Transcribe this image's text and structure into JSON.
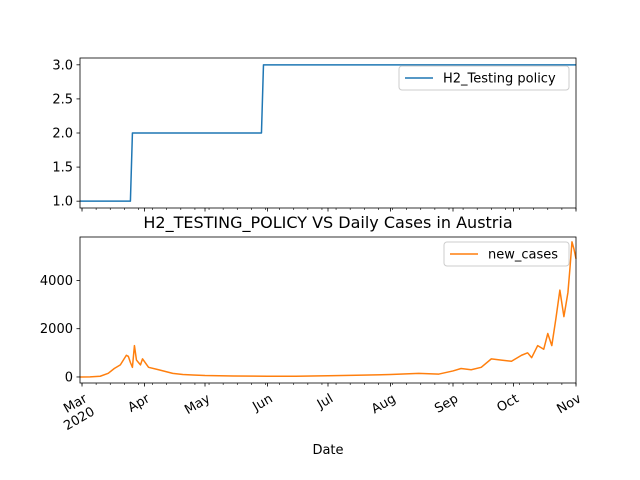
{
  "chart_data": [
    {
      "type": "line",
      "title": "",
      "xlabel": "",
      "ylabel": "",
      "ylim": [
        0.9,
        3.1
      ],
      "yticks": [
        1.0,
        1.5,
        2.0,
        2.5,
        3.0
      ],
      "ytick_labels": [
        "1.0",
        "1.5",
        "2.0",
        "2.5",
        "3.0"
      ],
      "legend_position": "top-right",
      "series": [
        {
          "name": "H2_Testing policy",
          "color": "#1f77b4",
          "x": [
            "2020-02-29",
            "2020-03-25",
            "2020-03-26",
            "2020-05-29",
            "2020-05-30",
            "2020-11-01"
          ],
          "values": [
            1,
            1,
            2,
            2,
            3,
            3
          ]
        }
      ]
    },
    {
      "type": "line",
      "title": "H2_TESTING_POLICY VS Daily Cases in Austria",
      "xlabel": "Date",
      "ylabel": "",
      "ylim": [
        -250,
        5800
      ],
      "yticks": [
        0,
        2000,
        4000
      ],
      "ytick_labels": [
        "0",
        "2000",
        "4000"
      ],
      "xlim": [
        "2020-02-29",
        "2020-11-01"
      ],
      "xticks": [
        "2020-03-01",
        "2020-04-01",
        "2020-05-01",
        "2020-06-01",
        "2020-07-01",
        "2020-08-01",
        "2020-09-01",
        "2020-10-01",
        "2020-11-01"
      ],
      "xtick_labels": [
        "Mar\n2020",
        "Apr",
        "May",
        "Jun",
        "Jul",
        "Aug",
        "Sep",
        "Oct",
        "Nov"
      ],
      "legend_position": "top-right",
      "series": [
        {
          "name": "new_cases",
          "color": "#ff7f0e",
          "x": [
            "2020-02-29",
            "2020-03-05",
            "2020-03-10",
            "2020-03-14",
            "2020-03-17",
            "2020-03-20",
            "2020-03-23",
            "2020-03-24",
            "2020-03-25",
            "2020-03-26",
            "2020-03-27",
            "2020-03-28",
            "2020-03-29",
            "2020-03-30",
            "2020-03-31",
            "2020-04-03",
            "2020-04-08",
            "2020-04-15",
            "2020-04-20",
            "2020-04-25",
            "2020-05-01",
            "2020-05-15",
            "2020-06-01",
            "2020-06-15",
            "2020-07-01",
            "2020-07-15",
            "2020-08-01",
            "2020-08-15",
            "2020-08-25",
            "2020-09-01",
            "2020-09-05",
            "2020-09-10",
            "2020-09-15",
            "2020-09-20",
            "2020-09-25",
            "2020-09-30",
            "2020-10-05",
            "2020-10-08",
            "2020-10-10",
            "2020-10-13",
            "2020-10-16",
            "2020-10-18",
            "2020-10-20",
            "2020-10-22",
            "2020-10-24",
            "2020-10-26",
            "2020-10-27",
            "2020-10-28",
            "2020-10-29",
            "2020-10-30",
            "2020-10-31",
            "2020-11-01"
          ],
          "values": [
            0,
            5,
            30,
            150,
            350,
            500,
            900,
            850,
            600,
            400,
            1300,
            700,
            600,
            500,
            750,
            400,
            300,
            150,
            100,
            80,
            60,
            40,
            30,
            30,
            50,
            70,
            100,
            150,
            120,
            250,
            350,
            300,
            400,
            750,
            700,
            650,
            900,
            1000,
            800,
            1300,
            1150,
            1800,
            1300,
            2400,
            3600,
            2500,
            3000,
            3500,
            4500,
            5600,
            5300,
            4900
          ]
        }
      ]
    }
  ]
}
